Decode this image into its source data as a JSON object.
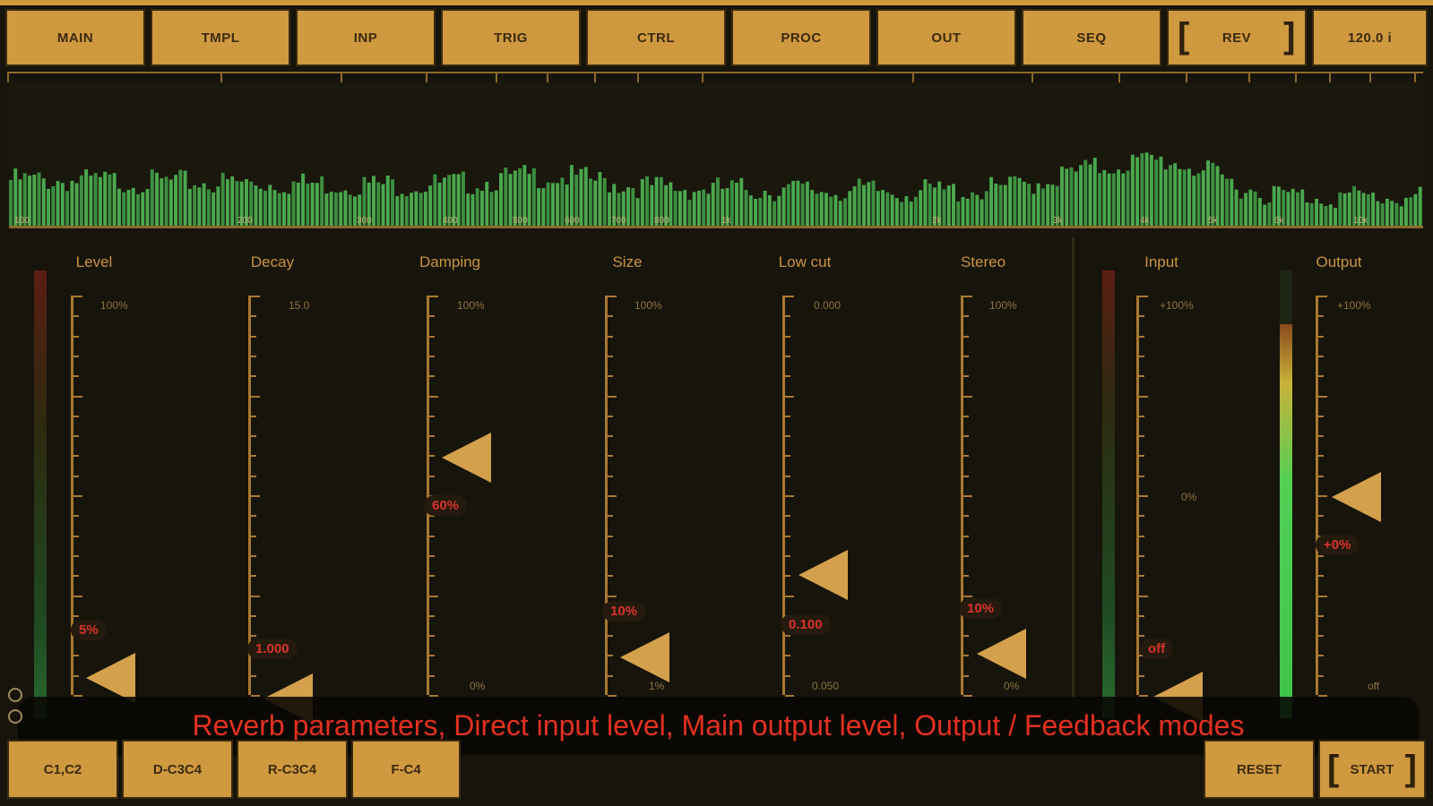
{
  "colors": {
    "accent": "#cf993f",
    "text_dark": "#3b2a0f",
    "value_red": "#d8342a",
    "background": "#17140b",
    "spectrum_green": "#43a347"
  },
  "nav": {
    "items": [
      {
        "label": "MAIN"
      },
      {
        "label": "TMPL"
      },
      {
        "label": "INP"
      },
      {
        "label": "TRIG"
      },
      {
        "label": "CTRL"
      },
      {
        "label": "PROC"
      },
      {
        "label": "OUT"
      },
      {
        "label": "SEQ"
      },
      {
        "label": "REV",
        "selected": true
      },
      {
        "label": "120.0 i"
      }
    ]
  },
  "spectrum": {
    "freq_labels": [
      "100",
      "200",
      "300",
      "400",
      "500",
      "600",
      "700",
      "800",
      "1k",
      "2k",
      "3k",
      "4k",
      "5k",
      "6k",
      "10k"
    ]
  },
  "faders": [
    {
      "label": "Level",
      "top": "100%",
      "bottom": "",
      "value": "5%",
      "level_fraction": 0.05
    },
    {
      "label": "Decay",
      "top": "15.0",
      "bottom": "",
      "value": "1.000",
      "level_fraction": 0.0
    },
    {
      "label": "Damping",
      "top": "100%",
      "bottom": "0%",
      "value": "60%",
      "level_fraction": 0.6
    },
    {
      "label": "Size",
      "top": "100%",
      "bottom": "1%",
      "value": "10%",
      "level_fraction": 0.1
    },
    {
      "label": "Low cut",
      "top": "0.000",
      "bottom": "0.050",
      "value": "0.100",
      "level_fraction": 0.3
    },
    {
      "label": "Stereo",
      "top": "100%",
      "bottom": "0%",
      "value": "10%",
      "level_fraction": 0.1
    },
    {
      "label": "Input",
      "top": "+100%",
      "mid": "0%",
      "bottom": "",
      "value": "off",
      "level_fraction": 0.0
    },
    {
      "label": "Output",
      "top": "+100%",
      "bottom": "off",
      "value": "+0%",
      "level_fraction": 0.5
    }
  ],
  "hint": {
    "text": "Reverb parameters, Direct input level, Main output level, Output / Feedback modes"
  },
  "bottom": {
    "left": [
      "C1,C2",
      "D-C3C4",
      "R-C3C4",
      "F-C4"
    ],
    "reset": "RESET",
    "start": "START"
  }
}
